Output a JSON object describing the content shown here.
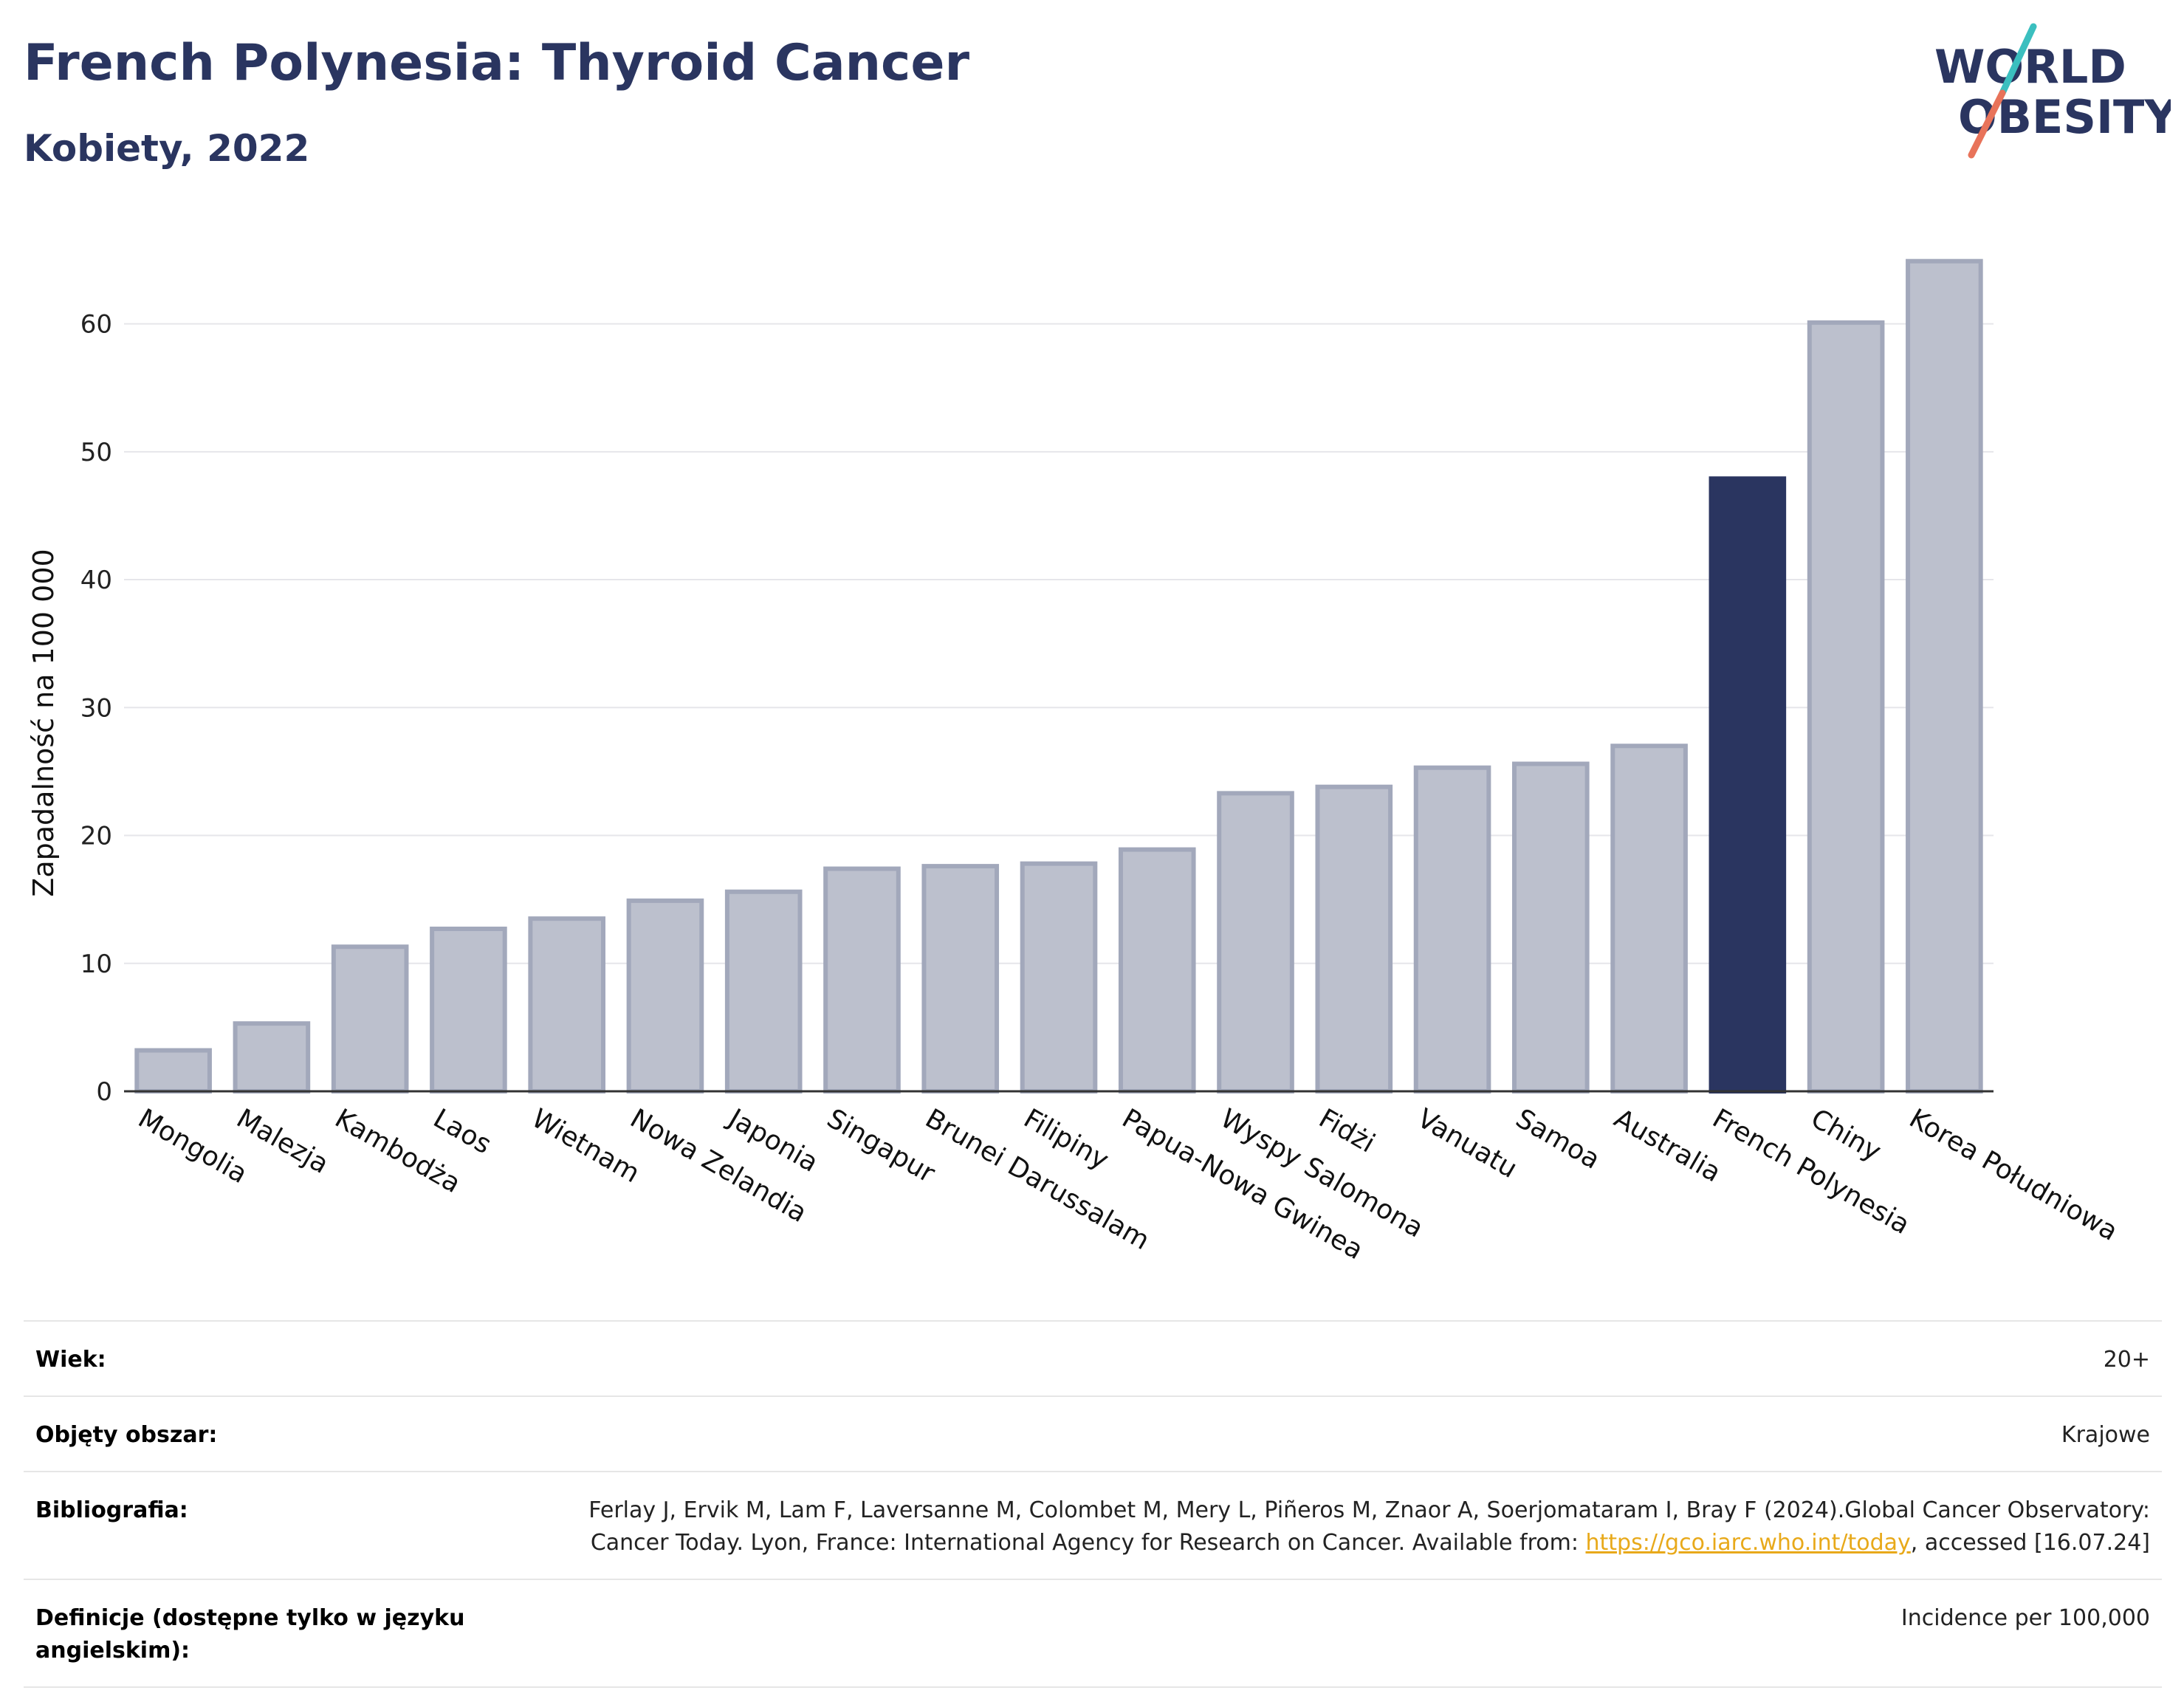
{
  "header": {
    "title": "French Polynesia: Thyroid Cancer",
    "subtitle": "Kobiety, 2022"
  },
  "logo": {
    "line1": "WORLD",
    "line2": "OBESITY"
  },
  "colors": {
    "highlight": "#2a3560",
    "bar": "#bcc0cd",
    "bar_border": "#a2a8bb",
    "logo_text": "#2a3560",
    "logo_slash_top": "#3bbfbf",
    "logo_slash_bottom": "#e8735a",
    "link": "#e8a91a"
  },
  "chart_data": {
    "type": "bar",
    "title": "French Polynesia: Thyroid Cancer",
    "subtitle": "Kobiety, 2022",
    "xlabel": "",
    "ylabel": "Zapadalność na 100 000",
    "ylim": [
      0,
      68
    ],
    "yticks": [
      0,
      10,
      20,
      30,
      40,
      50,
      60
    ],
    "grid": true,
    "highlight": "French Polynesia",
    "categories": [
      "Mongolia",
      "Malezja",
      "Kambodża",
      "Laos",
      "Wietnam",
      "Nowa Zelandia",
      "Japonia",
      "Singapur",
      "Brunei Darussalam",
      "Filipiny",
      "Papua-Nowa Gwinea",
      "Wyspy Salomona",
      "Fidżi",
      "Vanuatu",
      "Samoa",
      "Australia",
      "French Polynesia",
      "Chiny",
      "Korea Południowa"
    ],
    "values": [
      3.2,
      5.3,
      11.3,
      12.7,
      13.5,
      14.9,
      15.6,
      17.4,
      17.6,
      17.8,
      18.9,
      23.3,
      23.8,
      25.3,
      25.6,
      27.0,
      47.9,
      60.1,
      64.9
    ]
  },
  "meta": [
    {
      "label": "Wiek:",
      "value": "20+"
    },
    {
      "label": "Objęty obszar:",
      "value": "Krajowe"
    },
    {
      "label": "Bibliografia:",
      "value_before": "Ferlay J, Ervik M, Lam F, Laversanne M, Colombet M, Mery L, Piñeros M, Znaor A, Soerjomataram I, Bray F (2024).Global Cancer Observatory: Cancer Today. Lyon, France: International Agency for Research on Cancer. Available from: ",
      "link": "https://gco.iarc.who.int/today",
      "value_after": ", accessed [16.07.24]"
    },
    {
      "label": "Definicje (dostępne tylko w języku angielskim):",
      "value": "Incidence per 100,000"
    }
  ]
}
